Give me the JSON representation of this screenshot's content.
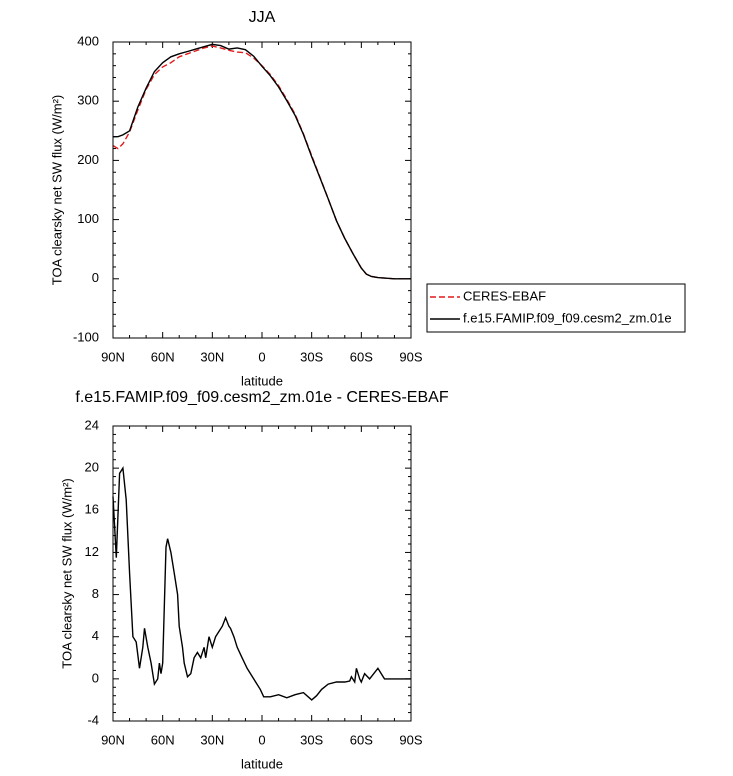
{
  "chart_data": [
    {
      "type": "line",
      "title": "JJA",
      "xlabel": "latitude",
      "ylabel": "TOA clearsky net SW flux (W/m²)",
      "x": [
        90,
        87,
        84,
        80,
        75,
        70,
        65,
        60,
        55,
        50,
        45,
        40,
        35,
        30,
        25,
        20,
        15,
        10,
        5,
        0,
        -5,
        -10,
        -15,
        -20,
        -25,
        -30,
        -35,
        -40,
        -45,
        -50,
        -55,
        -60,
        -63,
        -66,
        -70,
        -75,
        -80,
        -90
      ],
      "series": [
        {
          "name": "CERES-EBAF",
          "color": "#e41a1c",
          "dash": true,
          "values": [
            225,
            220,
            228,
            248,
            285,
            320,
            345,
            358,
            365,
            375,
            380,
            385,
            390,
            393,
            390,
            386,
            383,
            382,
            373,
            360,
            345,
            326,
            303,
            278,
            245,
            208,
            172,
            135,
            98,
            68,
            42,
            18,
            8,
            4,
            2,
            1,
            0,
            0
          ]
        },
        {
          "name": "f.e15.FAMIP.f09_f09.cesm2_zm.01e",
          "color": "#000000",
          "dash": false,
          "values": [
            240,
            240,
            243,
            250,
            290,
            322,
            350,
            365,
            375,
            380,
            384,
            388,
            392,
            396,
            394,
            388,
            390,
            387,
            376,
            359,
            343,
            324,
            301,
            276,
            244,
            206,
            171,
            135,
            98,
            68,
            42,
            18,
            8,
            4,
            2,
            1,
            0,
            0
          ]
        }
      ],
      "xlim": [
        90,
        -90
      ],
      "xticks": [
        {
          "value": 90,
          "label": "90N"
        },
        {
          "value": 60,
          "label": "60N"
        },
        {
          "value": 30,
          "label": "30N"
        },
        0,
        {
          "value": -30,
          "label": "30S"
        },
        {
          "value": -60,
          "label": "60S"
        },
        {
          "value": -90,
          "label": "90S"
        }
      ],
      "ylim": [
        -100,
        400
      ],
      "yticks": [
        -100,
        0,
        100,
        200,
        300,
        400
      ],
      "legend": "right"
    },
    {
      "type": "line",
      "title": "f.e15.FAMIP.f09_f09.cesm2_zm.01e - CERES-EBAF",
      "xlabel": "latitude",
      "ylabel": "TOA clearsky net SW flux (W/m²)",
      "color": "#000000",
      "x": [
        90,
        88,
        86,
        84,
        82,
        80,
        78,
        76,
        74,
        72,
        71,
        69,
        67,
        65,
        63,
        62,
        61,
        60,
        58,
        57,
        55,
        53,
        51,
        50,
        48,
        47,
        45,
        43,
        41,
        39,
        37,
        35,
        34,
        32,
        30,
        28,
        26,
        24,
        22,
        20,
        19,
        17,
        15,
        12,
        9,
        5,
        1,
        -1,
        -5,
        -10,
        -15,
        -20,
        -25,
        -30,
        -33,
        -36,
        -40,
        -45,
        -50,
        -53,
        -54,
        -56,
        -57,
        -59,
        -60,
        -62,
        -65,
        -70,
        -74,
        -90
      ],
      "values": [
        17.3,
        11.5,
        19.5,
        20,
        17,
        10,
        4,
        3.5,
        1,
        3,
        4.8,
        3,
        1.5,
        -0.5,
        0,
        1.5,
        0.5,
        1.5,
        12.5,
        13.3,
        12,
        10,
        8,
        5,
        3,
        1.5,
        0.2,
        0.5,
        2,
        2.5,
        2,
        3,
        2,
        4,
        3,
        4,
        4.5,
        5,
        5.8,
        5,
        4.8,
        4,
        3,
        2,
        1,
        0,
        -1,
        -1.7,
        -1.7,
        -1.5,
        -1.8,
        -1.5,
        -1.3,
        -2,
        -1.6,
        -1,
        -0.5,
        -0.3,
        -0.3,
        -0.2,
        0.2,
        -0.3,
        1,
        0,
        -0.3,
        0.5,
        0,
        1,
        0,
        0
      ],
      "xlim": [
        90,
        -90
      ],
      "xticks": [
        {
          "value": 90,
          "label": "90N"
        },
        {
          "value": 60,
          "label": "60N"
        },
        {
          "value": 30,
          "label": "30N"
        },
        0,
        {
          "value": -30,
          "label": "30S"
        },
        {
          "value": -60,
          "label": "60S"
        },
        {
          "value": -90,
          "label": "90S"
        }
      ],
      "ylim": [
        -4,
        24
      ],
      "yticks": [
        -4,
        0,
        4,
        8,
        12,
        16,
        20,
        24
      ]
    }
  ]
}
